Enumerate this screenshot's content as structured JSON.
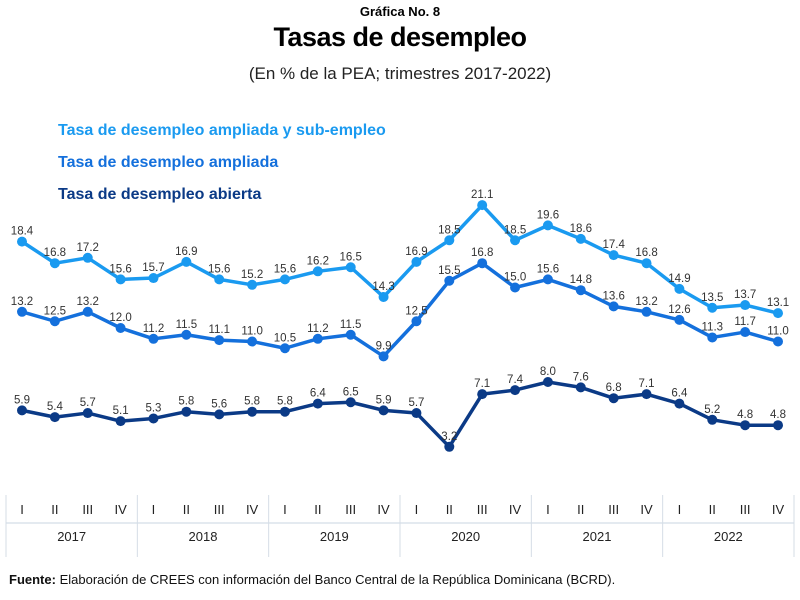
{
  "header": {
    "kicker": "Gráfica No. 8",
    "title": "Tasas de desempleo",
    "subtitle": "(En % de la PEA; trimestres 2017-2022)"
  },
  "chart_data": {
    "type": "line",
    "title": "Tasas de desempleo",
    "subtitle": "(En % de la PEA; trimestres 2017-2022)",
    "xlabel": "",
    "ylabel": "",
    "grid": false,
    "legend_position": "top-left",
    "years": [
      "2017",
      "2018",
      "2019",
      "2020",
      "2021",
      "2022"
    ],
    "quarters": [
      "I",
      "II",
      "III",
      "IV"
    ],
    "x": [
      "2017-I",
      "2017-II",
      "2017-III",
      "2017-IV",
      "2018-I",
      "2018-II",
      "2018-III",
      "2018-IV",
      "2019-I",
      "2019-II",
      "2019-III",
      "2019-IV",
      "2020-I",
      "2020-II",
      "2020-III",
      "2020-IV",
      "2021-I",
      "2021-II",
      "2021-III",
      "2021-IV",
      "2022-I",
      "2022-II",
      "2022-III",
      "2022-IV"
    ],
    "series": [
      {
        "name": "Tasa de desempleo ampliada y sub-empleo",
        "color": "#1a9af0",
        "values": [
          18.4,
          16.8,
          17.2,
          15.6,
          15.7,
          16.9,
          15.6,
          15.2,
          15.6,
          16.2,
          16.5,
          14.3,
          16.9,
          18.5,
          21.1,
          18.5,
          19.6,
          18.6,
          17.4,
          16.8,
          14.9,
          13.5,
          13.7,
          13.1
        ]
      },
      {
        "name": "Tasa de desempleo ampliada",
        "color": "#1470dc",
        "values": [
          13.2,
          12.5,
          13.2,
          12.0,
          11.2,
          11.5,
          11.1,
          11.0,
          10.5,
          11.2,
          11.5,
          9.9,
          12.5,
          15.5,
          16.8,
          15.0,
          15.6,
          14.8,
          13.6,
          13.2,
          12.6,
          11.3,
          11.7,
          11.0
        ]
      },
      {
        "name": "Tasa de desempleo abierta",
        "color": "#0b3a86",
        "values": [
          5.9,
          5.4,
          5.7,
          5.1,
          5.3,
          5.8,
          5.6,
          5.8,
          5.8,
          6.4,
          6.5,
          5.9,
          5.7,
          3.2,
          7.1,
          7.4,
          8.0,
          7.6,
          6.8,
          7.1,
          6.4,
          5.2,
          4.8,
          4.8
        ]
      }
    ]
  },
  "footer": {
    "source_label": "Fuente:",
    "source_text": " Elaboración de CREES con información del Banco Central de la República Dominicana (BCRD)."
  }
}
